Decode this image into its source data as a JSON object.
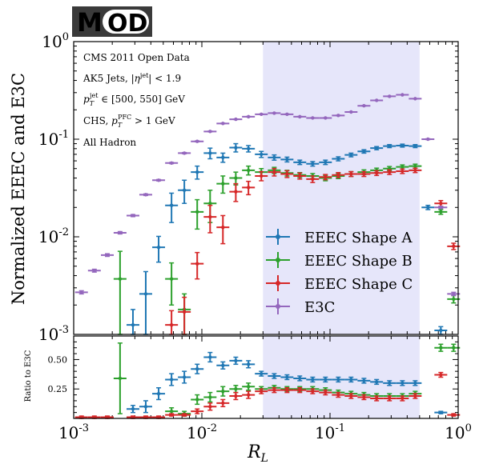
{
  "logo": {
    "text": "MOD",
    "bg": "#3a3a3a",
    "accent": "#8b1a2b"
  },
  "chart_data": {
    "type": "scatter",
    "xscale": "log",
    "xlim": [
      0.001,
      1
    ],
    "xlabel": "R",
    "xlabel_sub": "L",
    "x_tick_labels": [
      {
        "base": "10",
        "exp": "-3",
        "value": 0.001
      },
      {
        "base": "10",
        "exp": "-2",
        "value": 0.01
      },
      {
        "base": "10",
        "exp": "-1",
        "value": 0.1
      },
      {
        "base": "10",
        "exp": "0",
        "value": 1
      }
    ],
    "shaded_region": [
      0.03,
      0.5
    ],
    "shade_color": "#e6e6fa",
    "top": {
      "ylabel": "Normalized EEEC and E3C",
      "yscale": "log",
      "ylim": [
        0.001,
        1
      ],
      "y_tick_labels": [
        {
          "base": "10",
          "exp": "0",
          "value": 1
        },
        {
          "base": "10",
          "exp": "-1",
          "value": 0.1
        },
        {
          "base": "10",
          "exp": "-2",
          "value": 0.01
        },
        {
          "base": "10",
          "exp": "-3",
          "value": 0.001
        }
      ],
      "annotations": [
        "CMS 2011 Open Data",
        "AK5 Jets, |η^jet| < 1.9",
        "p_T^jet ∈ [500, 550] GeV",
        "CHS, p_T^PFC > 1 GeV",
        "All Hadron"
      ],
      "legend_placement": "lower-right",
      "series": [
        {
          "name": "EEEC Shape A",
          "color": "#1f77b4",
          "points": [
            [
              0.0029,
              0.00125,
              0.00055
            ],
            [
              0.00365,
              0.0026,
              0.0018
            ],
            [
              0.0046,
              0.0078,
              0.0023
            ],
            [
              0.0058,
              0.021,
              0.007
            ],
            [
              0.0073,
              0.03,
              0.008
            ],
            [
              0.0092,
              0.046,
              0.007
            ],
            [
              0.0116,
              0.072,
              0.009
            ],
            [
              0.0146,
              0.065,
              0.007
            ],
            [
              0.0184,
              0.082,
              0.008
            ],
            [
              0.0231,
              0.08,
              0.006
            ],
            [
              0.0291,
              0.07,
              0.005
            ],
            [
              0.0367,
              0.065,
              0.004
            ],
            [
              0.0462,
              0.062,
              0.0035
            ],
            [
              0.0581,
              0.058,
              0.003
            ],
            [
              0.0732,
              0.056,
              0.003
            ],
            [
              0.0921,
              0.058,
              0.003
            ],
            [
              0.116,
              0.063,
              0.003
            ],
            [
              0.146,
              0.069,
              0.003
            ],
            [
              0.184,
              0.075,
              0.003
            ],
            [
              0.231,
              0.081,
              0.003
            ],
            [
              0.291,
              0.085,
              0.003
            ],
            [
              0.367,
              0.086,
              0.003
            ],
            [
              0.462,
              0.085,
              0.003
            ],
            [
              0.581,
              0.02,
              0.001
            ],
            [
              0.732,
              0.0011,
              0.0001
            ]
          ]
        },
        {
          "name": "EEEC Shape B",
          "color": "#2ca02c",
          "points": [
            [
              0.0023,
              0.0037,
              0.0034
            ],
            [
              0.0058,
              0.0037,
              0.0017
            ],
            [
              0.0073,
              0.0018,
              0.0008
            ],
            [
              0.0092,
              0.018,
              0.006
            ],
            [
              0.0116,
              0.022,
              0.008
            ],
            [
              0.0146,
              0.035,
              0.007
            ],
            [
              0.0184,
              0.04,
              0.006
            ],
            [
              0.0231,
              0.048,
              0.005
            ],
            [
              0.0291,
              0.046,
              0.004
            ],
            [
              0.0367,
              0.048,
              0.0035
            ],
            [
              0.0462,
              0.045,
              0.003
            ],
            [
              0.0581,
              0.043,
              0.0025
            ],
            [
              0.0732,
              0.042,
              0.0025
            ],
            [
              0.0921,
              0.04,
              0.0025
            ],
            [
              0.116,
              0.042,
              0.0025
            ],
            [
              0.146,
              0.044,
              0.0025
            ],
            [
              0.184,
              0.046,
              0.0025
            ],
            [
              0.231,
              0.048,
              0.0025
            ],
            [
              0.291,
              0.05,
              0.0025
            ],
            [
              0.367,
              0.052,
              0.0025
            ],
            [
              0.462,
              0.053,
              0.0025
            ],
            [
              0.732,
              0.018,
              0.001
            ],
            [
              0.921,
              0.0023,
              0.0002
            ]
          ]
        },
        {
          "name": "EEEC Shape C",
          "color": "#d62728",
          "points": [
            [
              0.0058,
              0.00125,
              0.0005
            ],
            [
              0.0073,
              0.0017,
              0.0007
            ],
            [
              0.0092,
              0.0053,
              0.0016
            ],
            [
              0.0116,
              0.016,
              0.005
            ],
            [
              0.0146,
              0.0125,
              0.004
            ],
            [
              0.0184,
              0.029,
              0.006
            ],
            [
              0.0231,
              0.032,
              0.005
            ],
            [
              0.0291,
              0.042,
              0.0045
            ],
            [
              0.0367,
              0.046,
              0.004
            ],
            [
              0.0462,
              0.044,
              0.0035
            ],
            [
              0.0581,
              0.042,
              0.003
            ],
            [
              0.0732,
              0.039,
              0.003
            ],
            [
              0.0921,
              0.041,
              0.0025
            ],
            [
              0.116,
              0.043,
              0.0025
            ],
            [
              0.146,
              0.044,
              0.0025
            ],
            [
              0.184,
              0.044,
              0.0025
            ],
            [
              0.231,
              0.045,
              0.0025
            ],
            [
              0.291,
              0.046,
              0.0025
            ],
            [
              0.367,
              0.047,
              0.0025
            ],
            [
              0.462,
              0.048,
              0.0025
            ],
            [
              0.732,
              0.022,
              0.0015
            ],
            [
              0.921,
              0.008,
              0.0006
            ]
          ]
        },
        {
          "name": "E3C",
          "color": "#9467bd",
          "points": [
            [
              0.00115,
              0.0027,
              0.0001
            ],
            [
              0.00145,
              0.0045,
              0.00015
            ],
            [
              0.00183,
              0.0065,
              0.0002
            ],
            [
              0.0023,
              0.011,
              0.0003
            ],
            [
              0.0029,
              0.0165,
              0.0004
            ],
            [
              0.00365,
              0.027,
              0.0005
            ],
            [
              0.0046,
              0.038,
              0.0006
            ],
            [
              0.0058,
              0.057,
              0.0008
            ],
            [
              0.0073,
              0.072,
              0.001
            ],
            [
              0.0092,
              0.095,
              0.001
            ],
            [
              0.0116,
              0.12,
              0.001
            ],
            [
              0.0146,
              0.145,
              0.001
            ],
            [
              0.0184,
              0.16,
              0.001
            ],
            [
              0.0231,
              0.17,
              0.001
            ],
            [
              0.0291,
              0.18,
              0.001
            ],
            [
              0.0367,
              0.185,
              0.001
            ],
            [
              0.0462,
              0.18,
              0.001
            ],
            [
              0.0581,
              0.17,
              0.001
            ],
            [
              0.0732,
              0.165,
              0.001
            ],
            [
              0.0921,
              0.165,
              0.001
            ],
            [
              0.116,
              0.175,
              0.001
            ],
            [
              0.146,
              0.19,
              0.001
            ],
            [
              0.184,
              0.22,
              0.001
            ],
            [
              0.231,
              0.25,
              0.001
            ],
            [
              0.291,
              0.275,
              0.001
            ],
            [
              0.367,
              0.285,
              0.001
            ],
            [
              0.462,
              0.26,
              0.001
            ],
            [
              0.581,
              0.1,
              0.001
            ],
            [
              0.732,
              0.02,
              0.0005
            ],
            [
              0.921,
              0.0026,
              0.0001
            ]
          ]
        }
      ]
    },
    "ratio": {
      "ylabel": "Ratio to E3C",
      "ylim": [
        0,
        0.7
      ],
      "y_tick_labels": [
        {
          "label": "0.50",
          "value": 0.5
        },
        {
          "label": "0.25",
          "value": 0.25
        }
      ],
      "series": [
        {
          "name": "EEEC Shape A",
          "color": "#1f77b4",
          "points": [
            [
              0.0029,
              0.08,
              0.03
            ],
            [
              0.00365,
              0.1,
              0.05
            ],
            [
              0.0046,
              0.21,
              0.05
            ],
            [
              0.0058,
              0.33,
              0.05
            ],
            [
              0.0073,
              0.35,
              0.05
            ],
            [
              0.0092,
              0.42,
              0.04
            ],
            [
              0.0116,
              0.52,
              0.04
            ],
            [
              0.0146,
              0.45,
              0.03
            ],
            [
              0.0184,
              0.49,
              0.03
            ],
            [
              0.0231,
              0.46,
              0.03
            ],
            [
              0.0291,
              0.38,
              0.02
            ],
            [
              0.0367,
              0.36,
              0.02
            ],
            [
              0.0462,
              0.35,
              0.02
            ],
            [
              0.0581,
              0.34,
              0.02
            ],
            [
              0.0732,
              0.33,
              0.02
            ],
            [
              0.0921,
              0.33,
              0.02
            ],
            [
              0.116,
              0.33,
              0.02
            ],
            [
              0.146,
              0.33,
              0.02
            ],
            [
              0.184,
              0.32,
              0.02
            ],
            [
              0.231,
              0.31,
              0.02
            ],
            [
              0.291,
              0.3,
              0.02
            ],
            [
              0.367,
              0.3,
              0.02
            ],
            [
              0.462,
              0.3,
              0.02
            ],
            [
              0.732,
              0.05,
              0.01
            ]
          ]
        },
        {
          "name": "EEEC Shape B",
          "color": "#2ca02c",
          "points": [
            [
              0.0023,
              0.34,
              0.3
            ],
            [
              0.0058,
              0.06,
              0.03
            ],
            [
              0.0073,
              0.04,
              0.02
            ],
            [
              0.0092,
              0.16,
              0.04
            ],
            [
              0.0116,
              0.18,
              0.04
            ],
            [
              0.0146,
              0.23,
              0.04
            ],
            [
              0.0184,
              0.25,
              0.03
            ],
            [
              0.0231,
              0.27,
              0.03
            ],
            [
              0.0291,
              0.25,
              0.02
            ],
            [
              0.0367,
              0.26,
              0.02
            ],
            [
              0.0462,
              0.25,
              0.02
            ],
            [
              0.0581,
              0.25,
              0.02
            ],
            [
              0.0732,
              0.25,
              0.02
            ],
            [
              0.0921,
              0.24,
              0.02
            ],
            [
              0.116,
              0.22,
              0.02
            ],
            [
              0.146,
              0.21,
              0.02
            ],
            [
              0.184,
              0.2,
              0.02
            ],
            [
              0.231,
              0.19,
              0.02
            ],
            [
              0.291,
              0.19,
              0.02
            ],
            [
              0.367,
              0.19,
              0.02
            ],
            [
              0.462,
              0.21,
              0.02
            ],
            [
              0.732,
              0.6,
              0.03
            ],
            [
              0.921,
              0.6,
              0.03
            ]
          ]
        },
        {
          "name": "EEEC Shape C",
          "color": "#d62728",
          "points": [
            [
              0.00115,
              0.01,
              0.01
            ],
            [
              0.00145,
              0.01,
              0.01
            ],
            [
              0.00183,
              0.01,
              0.01
            ],
            [
              0.0029,
              0.01,
              0.01
            ],
            [
              0.00365,
              0.01,
              0.01
            ],
            [
              0.0046,
              0.01,
              0.01
            ],
            [
              0.0058,
              0.03,
              0.01
            ],
            [
              0.0073,
              0.03,
              0.01
            ],
            [
              0.0092,
              0.06,
              0.02
            ],
            [
              0.0116,
              0.1,
              0.03
            ],
            [
              0.0146,
              0.13,
              0.03
            ],
            [
              0.0184,
              0.19,
              0.03
            ],
            [
              0.0231,
              0.2,
              0.03
            ],
            [
              0.0291,
              0.23,
              0.02
            ],
            [
              0.0367,
              0.24,
              0.02
            ],
            [
              0.0462,
              0.24,
              0.02
            ],
            [
              0.0581,
              0.24,
              0.02
            ],
            [
              0.0732,
              0.23,
              0.02
            ],
            [
              0.0921,
              0.22,
              0.02
            ],
            [
              0.116,
              0.2,
              0.02
            ],
            [
              0.146,
              0.19,
              0.02
            ],
            [
              0.184,
              0.18,
              0.02
            ],
            [
              0.231,
              0.17,
              0.02
            ],
            [
              0.291,
              0.17,
              0.02
            ],
            [
              0.367,
              0.17,
              0.02
            ],
            [
              0.462,
              0.19,
              0.02
            ],
            [
              0.732,
              0.37,
              0.02
            ],
            [
              0.921,
              0.03,
              0.01
            ]
          ]
        }
      ]
    }
  }
}
